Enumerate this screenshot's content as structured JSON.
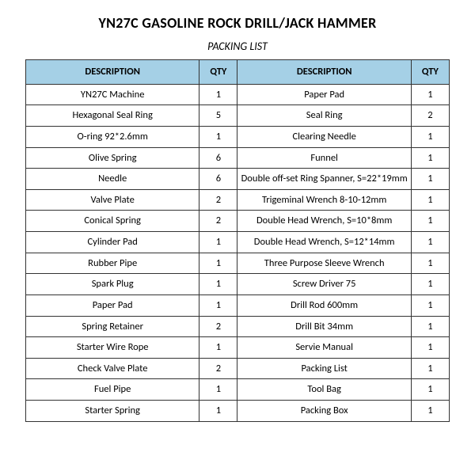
{
  "title": "YN27C GASOLINE ROCK DRILL/JACK HAMMER",
  "subtitle": "PACKING LIST",
  "header_bg": "#a5d0e6",
  "columns": {
    "desc_left": "DESCRIPTION",
    "qty_left": "QTY",
    "desc_right": "DESCRIPTION",
    "qty_right": "QTY"
  },
  "rows": [
    {
      "desc_left": "YN27C Machine",
      "qty_left": "1",
      "desc_right": "Paper Pad",
      "qty_right": "1"
    },
    {
      "desc_left": "Hexagonal Seal Ring",
      "qty_left": "5",
      "desc_right": "Seal Ring",
      "qty_right": "2"
    },
    {
      "desc_left": "O-ring 92*2.6mm",
      "qty_left": "1",
      "desc_right": "Clearing Needle",
      "qty_right": "1"
    },
    {
      "desc_left": "Olive Spring",
      "qty_left": "6",
      "desc_right": "Funnel",
      "qty_right": "1"
    },
    {
      "desc_left": "Needle",
      "qty_left": "6",
      "desc_right": "Double off-set Ring Spanner, S=22*19mm",
      "qty_right": "1"
    },
    {
      "desc_left": "Valve Plate",
      "qty_left": "2",
      "desc_right": "Trigeminal Wrench 8-10-12mm",
      "qty_right": "1"
    },
    {
      "desc_left": "Conical Spring",
      "qty_left": "2",
      "desc_right": "Double Head Wrench, S=10*8mm",
      "qty_right": "1"
    },
    {
      "desc_left": "Cylinder Pad",
      "qty_left": "1",
      "desc_right": "Double Head Wrench, S=12*14mm",
      "qty_right": "1"
    },
    {
      "desc_left": "Rubber Pipe",
      "qty_left": "1",
      "desc_right": "Three Purpose Sleeve Wrench",
      "qty_right": "1"
    },
    {
      "desc_left": "Spark Plug",
      "qty_left": "1",
      "desc_right": "Screw Driver 75",
      "qty_right": "1"
    },
    {
      "desc_left": "Paper Pad",
      "qty_left": "1",
      "desc_right": "Drill Rod 600mm",
      "qty_right": "1"
    },
    {
      "desc_left": "Spring Retainer",
      "qty_left": "2",
      "desc_right": "Drill Bit 34mm",
      "qty_right": "1"
    },
    {
      "desc_left": "Starter Wire Rope",
      "qty_left": "1",
      "desc_right": "Servie Manual",
      "qty_right": "1"
    },
    {
      "desc_left": "Check Valve Plate",
      "qty_left": "2",
      "desc_right": "Packing List",
      "qty_right": "1"
    },
    {
      "desc_left": "Fuel Pipe",
      "qty_left": "1",
      "desc_right": "Tool Bag",
      "qty_right": "1"
    },
    {
      "desc_left": "Starter Spring",
      "qty_left": "1",
      "desc_right": "Packing Box",
      "qty_right": "1"
    }
  ]
}
